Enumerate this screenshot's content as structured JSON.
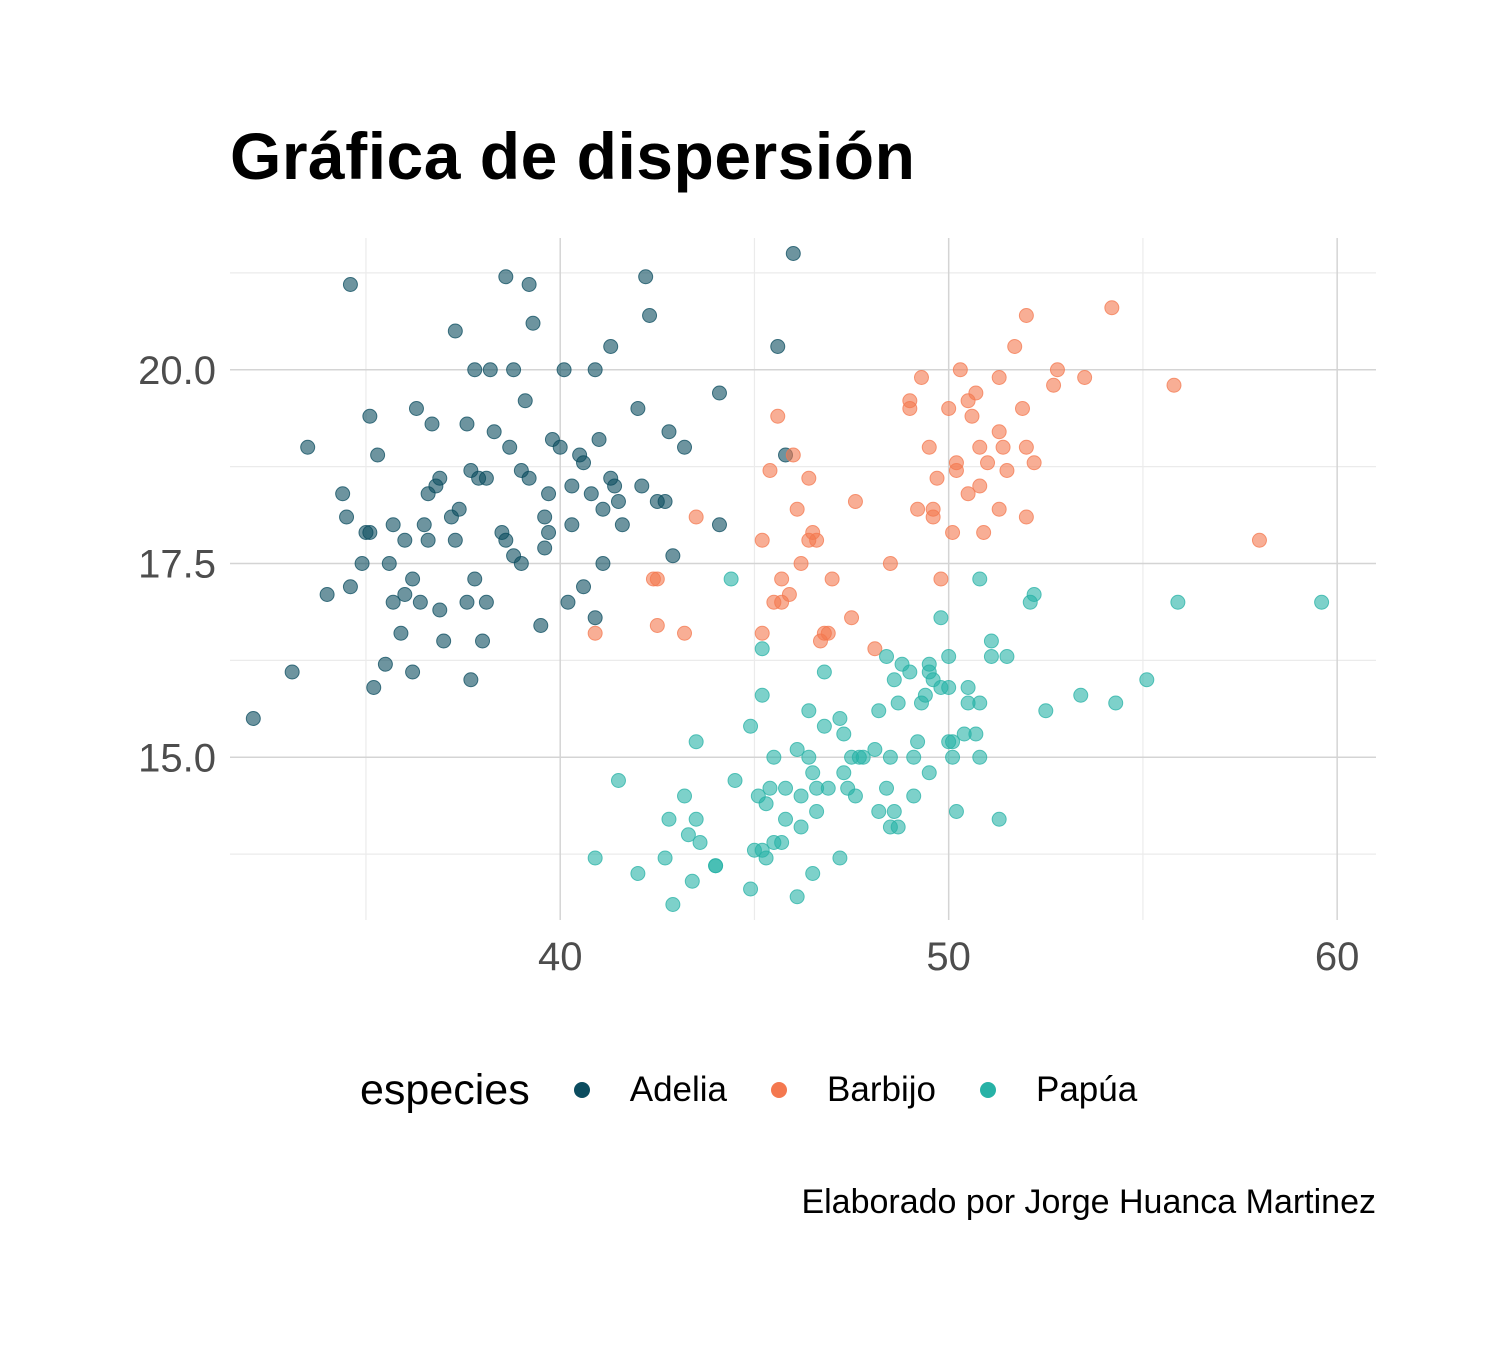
{
  "chart_data": {
    "type": "scatter",
    "title": "Gráfica de dispersión",
    "xlabel": "",
    "ylabel": "",
    "xlim": [
      31.5,
      61
    ],
    "ylim": [
      12.9,
      21.7
    ],
    "x_ticks": [
      40,
      50,
      60
    ],
    "x_tick_labels": [
      "40",
      "50",
      "60"
    ],
    "y_ticks": [
      15.0,
      17.5,
      20.0
    ],
    "y_tick_labels": [
      "15.0",
      "17.5",
      "20.0"
    ],
    "grid": true,
    "legend": {
      "title": "especies",
      "position": "bottom"
    },
    "caption": "Elaborado por Jorge Huanca Martinez",
    "series": [
      {
        "name": "Adelia",
        "color": "#0b4c5f",
        "points": [
          [
            32.1,
            15.5
          ],
          [
            33.1,
            16.1
          ],
          [
            33.5,
            19.0
          ],
          [
            34.0,
            17.1
          ],
          [
            34.4,
            18.4
          ],
          [
            34.5,
            18.1
          ],
          [
            34.6,
            17.2
          ],
          [
            34.6,
            21.1
          ],
          [
            35.0,
            17.9
          ],
          [
            35.1,
            19.4
          ],
          [
            35.2,
            15.9
          ],
          [
            35.3,
            18.9
          ],
          [
            35.5,
            16.2
          ],
          [
            35.6,
            17.5
          ],
          [
            35.7,
            18.0
          ],
          [
            35.9,
            16.6
          ],
          [
            36.0,
            17.1
          ],
          [
            36.0,
            17.8
          ],
          [
            36.2,
            16.1
          ],
          [
            36.2,
            17.3
          ],
          [
            36.4,
            17.0
          ],
          [
            36.5,
            18.0
          ],
          [
            36.6,
            17.8
          ],
          [
            36.7,
            19.3
          ],
          [
            36.8,
            18.5
          ],
          [
            36.9,
            18.6
          ],
          [
            37.0,
            16.5
          ],
          [
            37.2,
            18.1
          ],
          [
            37.3,
            17.8
          ],
          [
            37.6,
            17.0
          ],
          [
            37.7,
            16.0
          ],
          [
            37.7,
            18.7
          ],
          [
            37.8,
            20.0
          ],
          [
            37.9,
            18.6
          ],
          [
            38.1,
            17.0
          ],
          [
            38.1,
            18.6
          ],
          [
            38.2,
            20.0
          ],
          [
            38.6,
            21.2
          ],
          [
            38.7,
            19.0
          ],
          [
            38.8,
            17.6
          ],
          [
            39.0,
            17.5
          ],
          [
            39.2,
            18.6
          ],
          [
            39.2,
            21.1
          ],
          [
            39.3,
            20.6
          ],
          [
            39.5,
            16.7
          ],
          [
            39.6,
            17.7
          ],
          [
            39.7,
            18.4
          ],
          [
            39.8,
            19.1
          ],
          [
            40.2,
            17.0
          ],
          [
            40.3,
            18.0
          ],
          [
            40.5,
            18.9
          ],
          [
            40.6,
            17.2
          ],
          [
            40.8,
            18.4
          ],
          [
            40.9,
            16.8
          ],
          [
            41.1,
            17.5
          ],
          [
            41.1,
            18.2
          ],
          [
            41.4,
            18.5
          ],
          [
            41.5,
            18.3
          ],
          [
            41.6,
            18.0
          ],
          [
            42.0,
            19.5
          ],
          [
            42.1,
            18.5
          ],
          [
            42.2,
            21.2
          ],
          [
            42.3,
            20.7
          ],
          [
            42.5,
            18.3
          ],
          [
            42.8,
            19.2
          ],
          [
            42.9,
            17.6
          ],
          [
            43.2,
            19.0
          ],
          [
            44.1,
            19.7
          ],
          [
            44.1,
            18.0
          ],
          [
            45.6,
            20.3
          ],
          [
            45.8,
            18.9
          ],
          [
            46.0,
            21.5
          ],
          [
            36.3,
            19.5
          ],
          [
            37.6,
            19.3
          ],
          [
            38.3,
            19.2
          ],
          [
            38.8,
            20.0
          ],
          [
            39.1,
            19.6
          ],
          [
            40.1,
            20.0
          ],
          [
            40.9,
            20.0
          ],
          [
            41.3,
            20.3
          ],
          [
            37.3,
            20.5
          ],
          [
            35.1,
            17.9
          ],
          [
            36.6,
            18.4
          ],
          [
            36.9,
            16.9
          ],
          [
            37.4,
            18.2
          ],
          [
            38.6,
            17.8
          ],
          [
            39.6,
            18.1
          ],
          [
            40.0,
            19.0
          ],
          [
            40.6,
            18.8
          ],
          [
            41.3,
            18.6
          ],
          [
            34.9,
            17.5
          ],
          [
            35.7,
            17.0
          ],
          [
            37.8,
            17.3
          ],
          [
            38.5,
            17.9
          ],
          [
            39.0,
            18.7
          ],
          [
            40.3,
            18.5
          ],
          [
            41.0,
            19.1
          ],
          [
            42.7,
            18.3
          ],
          [
            38.0,
            16.5
          ],
          [
            39.7,
            17.9
          ]
        ]
      },
      {
        "name": "Barbijo",
        "color": "#f4784f",
        "points": [
          [
            40.9,
            16.6
          ],
          [
            42.4,
            17.3
          ],
          [
            42.5,
            16.7
          ],
          [
            43.2,
            16.6
          ],
          [
            43.5,
            18.1
          ],
          [
            45.2,
            16.6
          ],
          [
            45.2,
            17.8
          ],
          [
            45.4,
            18.7
          ],
          [
            45.5,
            17.0
          ],
          [
            45.6,
            19.4
          ],
          [
            45.7,
            17.0
          ],
          [
            45.7,
            17.3
          ],
          [
            45.9,
            17.1
          ],
          [
            46.0,
            18.9
          ],
          [
            46.1,
            18.2
          ],
          [
            46.2,
            17.5
          ],
          [
            46.4,
            17.8
          ],
          [
            46.4,
            18.6
          ],
          [
            46.5,
            17.9
          ],
          [
            46.6,
            17.8
          ],
          [
            46.7,
            16.5
          ],
          [
            46.8,
            16.6
          ],
          [
            47.0,
            17.3
          ],
          [
            47.5,
            16.8
          ],
          [
            47.6,
            18.3
          ],
          [
            48.1,
            16.4
          ],
          [
            48.5,
            17.5
          ],
          [
            49.0,
            19.5
          ],
          [
            49.0,
            19.6
          ],
          [
            49.2,
            18.2
          ],
          [
            49.3,
            19.9
          ],
          [
            49.5,
            19.0
          ],
          [
            49.6,
            18.2
          ],
          [
            49.7,
            18.6
          ],
          [
            49.8,
            17.3
          ],
          [
            50.0,
            19.5
          ],
          [
            50.1,
            17.9
          ],
          [
            50.2,
            18.8
          ],
          [
            50.3,
            20.0
          ],
          [
            50.5,
            19.6
          ],
          [
            50.5,
            18.4
          ],
          [
            50.6,
            19.4
          ],
          [
            50.7,
            19.7
          ],
          [
            50.8,
            19.0
          ],
          [
            50.9,
            17.9
          ],
          [
            51.0,
            18.8
          ],
          [
            51.3,
            19.9
          ],
          [
            51.3,
            18.2
          ],
          [
            51.4,
            19.0
          ],
          [
            51.5,
            18.7
          ],
          [
            51.7,
            20.3
          ],
          [
            51.9,
            19.5
          ],
          [
            52.0,
            18.1
          ],
          [
            52.0,
            19.0
          ],
          [
            52.0,
            20.7
          ],
          [
            52.2,
            18.8
          ],
          [
            52.7,
            19.8
          ],
          [
            52.8,
            20.0
          ],
          [
            53.5,
            19.9
          ],
          [
            54.2,
            20.8
          ],
          [
            55.8,
            19.8
          ],
          [
            58.0,
            17.8
          ],
          [
            42.5,
            17.3
          ],
          [
            46.9,
            16.6
          ],
          [
            49.6,
            18.1
          ],
          [
            50.2,
            18.7
          ],
          [
            51.3,
            19.2
          ],
          [
            50.8,
            18.5
          ]
        ]
      },
      {
        "name": "Papúa",
        "color": "#27b2a6",
        "points": [
          [
            40.9,
            13.7
          ],
          [
            41.5,
            14.7
          ],
          [
            42.0,
            13.5
          ],
          [
            42.7,
            13.7
          ],
          [
            42.8,
            14.2
          ],
          [
            42.9,
            13.1
          ],
          [
            43.2,
            14.5
          ],
          [
            43.3,
            14.0
          ],
          [
            43.4,
            13.4
          ],
          [
            43.5,
            14.2
          ],
          [
            43.6,
            13.9
          ],
          [
            43.5,
            15.2
          ],
          [
            44.0,
            13.6
          ],
          [
            44.4,
            17.3
          ],
          [
            44.5,
            14.7
          ],
          [
            44.9,
            13.3
          ],
          [
            45.0,
            13.8
          ],
          [
            45.1,
            14.5
          ],
          [
            45.2,
            13.8
          ],
          [
            45.2,
            16.4
          ],
          [
            45.3,
            13.7
          ],
          [
            45.4,
            14.6
          ],
          [
            45.5,
            13.9
          ],
          [
            45.5,
            15.0
          ],
          [
            45.7,
            13.9
          ],
          [
            45.8,
            14.2
          ],
          [
            46.1,
            13.2
          ],
          [
            46.1,
            15.1
          ],
          [
            46.2,
            14.5
          ],
          [
            46.2,
            14.1
          ],
          [
            46.4,
            15.6
          ],
          [
            46.4,
            15.0
          ],
          [
            46.5,
            13.5
          ],
          [
            46.5,
            14.8
          ],
          [
            46.6,
            14.3
          ],
          [
            46.8,
            15.4
          ],
          [
            46.8,
            16.1
          ],
          [
            46.9,
            14.6
          ],
          [
            47.2,
            15.5
          ],
          [
            47.2,
            13.7
          ],
          [
            47.3,
            15.3
          ],
          [
            47.4,
            14.6
          ],
          [
            47.5,
            15.0
          ],
          [
            47.6,
            14.5
          ],
          [
            47.7,
            15.0
          ],
          [
            47.8,
            15.0
          ],
          [
            48.1,
            15.1
          ],
          [
            48.2,
            14.3
          ],
          [
            48.2,
            15.6
          ],
          [
            48.4,
            14.6
          ],
          [
            48.4,
            16.3
          ],
          [
            48.5,
            14.1
          ],
          [
            48.5,
            15.0
          ],
          [
            48.6,
            16.0
          ],
          [
            48.7,
            15.7
          ],
          [
            48.7,
            14.1
          ],
          [
            48.8,
            16.2
          ],
          [
            49.0,
            16.1
          ],
          [
            49.1,
            14.5
          ],
          [
            49.1,
            15.0
          ],
          [
            49.2,
            15.2
          ],
          [
            49.3,
            15.7
          ],
          [
            49.4,
            15.8
          ],
          [
            49.5,
            16.2
          ],
          [
            49.5,
            16.1
          ],
          [
            49.6,
            16.0
          ],
          [
            49.8,
            15.9
          ],
          [
            49.8,
            16.8
          ],
          [
            50.0,
            16.3
          ],
          [
            50.0,
            15.2
          ],
          [
            50.0,
            15.9
          ],
          [
            50.1,
            15.0
          ],
          [
            50.2,
            14.3
          ],
          [
            50.4,
            15.3
          ],
          [
            50.5,
            15.9
          ],
          [
            50.5,
            15.7
          ],
          [
            50.7,
            15.3
          ],
          [
            50.8,
            15.0
          ],
          [
            50.8,
            17.3
          ],
          [
            50.8,
            15.7
          ],
          [
            51.1,
            16.5
          ],
          [
            51.1,
            16.3
          ],
          [
            51.3,
            14.2
          ],
          [
            51.5,
            16.3
          ],
          [
            52.1,
            17.0
          ],
          [
            52.2,
            17.1
          ],
          [
            52.5,
            15.6
          ],
          [
            53.4,
            15.8
          ],
          [
            54.3,
            15.7
          ],
          [
            55.1,
            16.0
          ],
          [
            55.9,
            17.0
          ],
          [
            59.6,
            17.0
          ],
          [
            44.0,
            13.6
          ],
          [
            45.3,
            14.4
          ],
          [
            47.3,
            14.8
          ],
          [
            49.5,
            14.8
          ],
          [
            50.1,
            15.2
          ],
          [
            46.6,
            14.6
          ],
          [
            48.6,
            14.3
          ],
          [
            45.8,
            14.6
          ],
          [
            44.9,
            15.4
          ],
          [
            45.2,
            15.8
          ]
        ]
      }
    ]
  }
}
